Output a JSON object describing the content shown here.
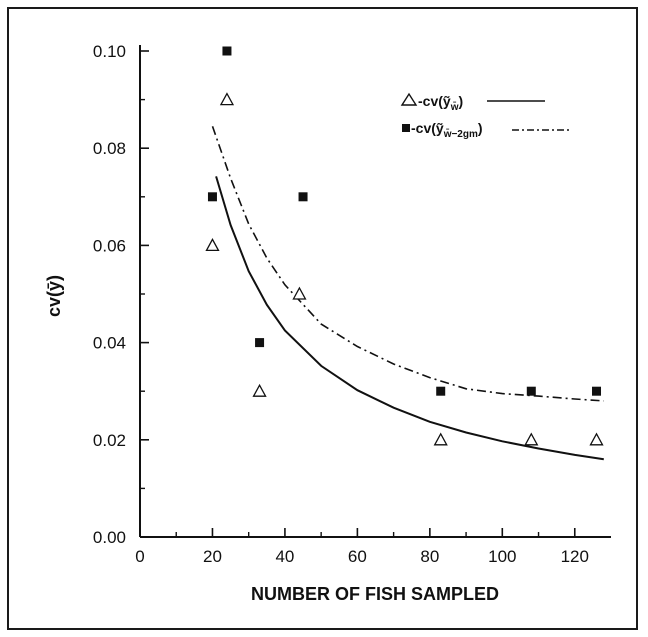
{
  "chart_data": {
    "type": "scatter",
    "xlabel": "NUMBER OF FISH SAMPLED",
    "ylabel": "cv(ȳ)",
    "xlim": [
      0,
      130
    ],
    "ylim": [
      0,
      0.1
    ],
    "xticks": [
      0,
      20,
      40,
      60,
      80,
      100,
      120
    ],
    "yticks": [
      0.0,
      0.02,
      0.04,
      0.06,
      0.08,
      0.1
    ],
    "x_tick_labels": [
      "0",
      "20",
      "40",
      "60",
      "80",
      "100",
      "120"
    ],
    "y_tick_labels": [
      "0.00",
      "0.02",
      "0.04",
      "0.06",
      "0.08",
      "0.10"
    ],
    "grid": false,
    "legend_position": "top-right",
    "series": [
      {
        "name": "cv(ỹw̄)",
        "legend_label": "△-cv(ỹw̄)",
        "marker": "open-triangle",
        "line_style": "solid",
        "points": [
          {
            "x": 20,
            "y": 0.06
          },
          {
            "x": 24,
            "y": 0.09
          },
          {
            "x": 33,
            "y": 0.03
          },
          {
            "x": 44,
            "y": 0.05
          },
          {
            "x": 83,
            "y": 0.02
          },
          {
            "x": 108,
            "y": 0.02
          },
          {
            "x": 126,
            "y": 0.02
          }
        ],
        "fit_curve": [
          {
            "x": 21,
            "y": 0.0742
          },
          {
            "x": 25,
            "y": 0.0642
          },
          {
            "x": 30,
            "y": 0.0547
          },
          {
            "x": 35,
            "y": 0.0478
          },
          {
            "x": 40,
            "y": 0.0425
          },
          {
            "x": 50,
            "y": 0.0352
          },
          {
            "x": 60,
            "y": 0.0302
          },
          {
            "x": 70,
            "y": 0.0266
          },
          {
            "x": 80,
            "y": 0.0237
          },
          {
            "x": 90,
            "y": 0.0215
          },
          {
            "x": 100,
            "y": 0.0197
          },
          {
            "x": 110,
            "y": 0.0182
          },
          {
            "x": 120,
            "y": 0.0169
          },
          {
            "x": 128,
            "y": 0.016
          }
        ]
      },
      {
        "name": "cv(ỹw̄−2gm)",
        "legend_label": "■-cv(ỹw̄−2gm)",
        "marker": "filled-square",
        "line_style": "dash-dot",
        "points": [
          {
            "x": 20,
            "y": 0.07
          },
          {
            "x": 24,
            "y": 0.1
          },
          {
            "x": 33,
            "y": 0.04
          },
          {
            "x": 45,
            "y": 0.07
          },
          {
            "x": 83,
            "y": 0.03
          },
          {
            "x": 108,
            "y": 0.03
          },
          {
            "x": 126,
            "y": 0.03
          }
        ],
        "fit_curve": [
          {
            "x": 20,
            "y": 0.0845
          },
          {
            "x": 25,
            "y": 0.0738
          },
          {
            "x": 30,
            "y": 0.0644
          },
          {
            "x": 35,
            "y": 0.0574
          },
          {
            "x": 40,
            "y": 0.0519
          },
          {
            "x": 50,
            "y": 0.0438
          },
          {
            "x": 60,
            "y": 0.0392
          },
          {
            "x": 70,
            "y": 0.0356
          },
          {
            "x": 80,
            "y": 0.0328
          },
          {
            "x": 90,
            "y": 0.0305
          },
          {
            "x": 100,
            "y": 0.0295
          },
          {
            "x": 110,
            "y": 0.029
          },
          {
            "x": 120,
            "y": 0.0284
          },
          {
            "x": 128,
            "y": 0.028
          }
        ]
      }
    ]
  }
}
